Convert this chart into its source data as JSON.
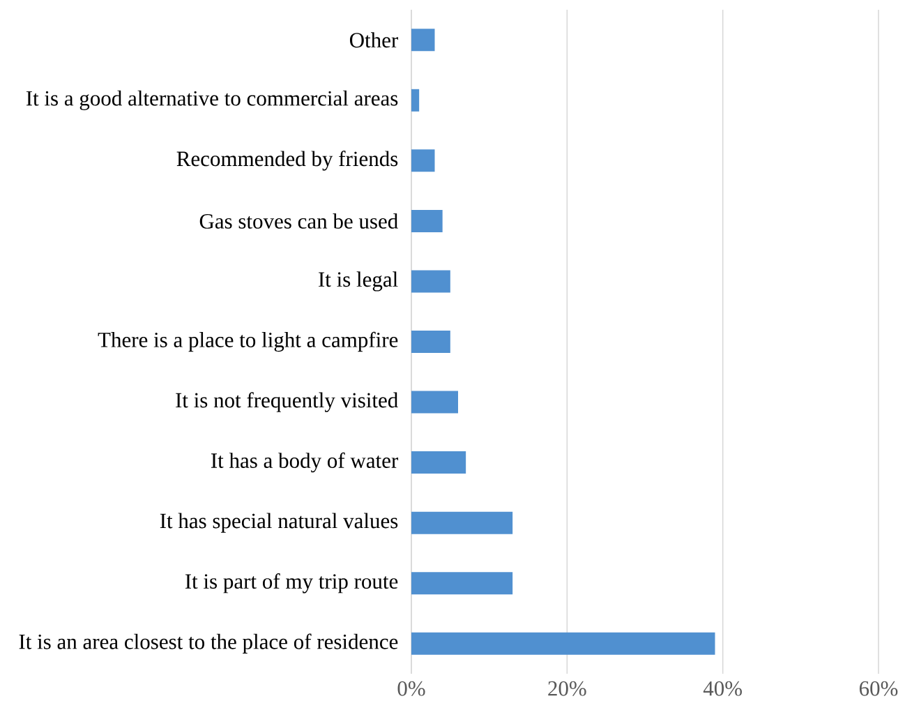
{
  "chart_data": {
    "type": "bar",
    "orientation": "horizontal",
    "categories": [
      "Other",
      "It is a good alternative to commercial areas",
      "Recommended by friends",
      "Gas stoves can be used",
      "It is legal",
      "There is a place to light a campfire",
      "It is not frequently visited",
      "It has a body of water",
      "It has special natural values",
      "It is part of my trip route",
      "It is an area closest to the place of residence"
    ],
    "values": [
      3,
      1,
      3,
      4,
      5,
      5,
      6,
      7,
      13,
      13,
      39
    ],
    "color": "#5090d0",
    "xlim": [
      0,
      60
    ],
    "xticks": [
      {
        "value": 0,
        "label": "0%"
      },
      {
        "value": 20,
        "label": "20%"
      },
      {
        "value": 40,
        "label": "40%"
      },
      {
        "value": 60,
        "label": "60%"
      }
    ],
    "grid": "x"
  }
}
